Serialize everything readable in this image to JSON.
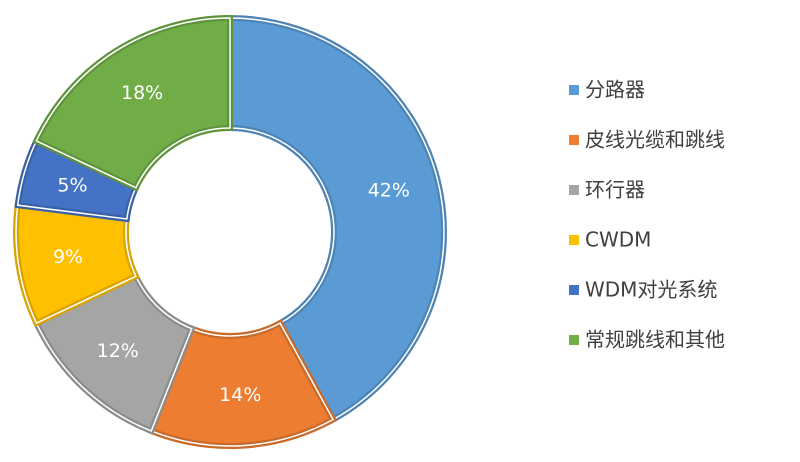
{
  "chart_data": {
    "type": "pie",
    "categories": [
      "分路器",
      "皮线光缆和跳线",
      "环行器",
      "CWDM",
      "WDM对光系统",
      "常规跳线和其他"
    ],
    "values": [
      42,
      14,
      12,
      9,
      5,
      18
    ],
    "value_labels": [
      "42%",
      "14%",
      "12%",
      "9%",
      "5%",
      "18%"
    ],
    "colors": [
      "#5b9bd5",
      "#ed7d31",
      "#a5a5a5",
      "#ffc000",
      "#4472c4",
      "#70ad47"
    ],
    "legend": "right"
  }
}
